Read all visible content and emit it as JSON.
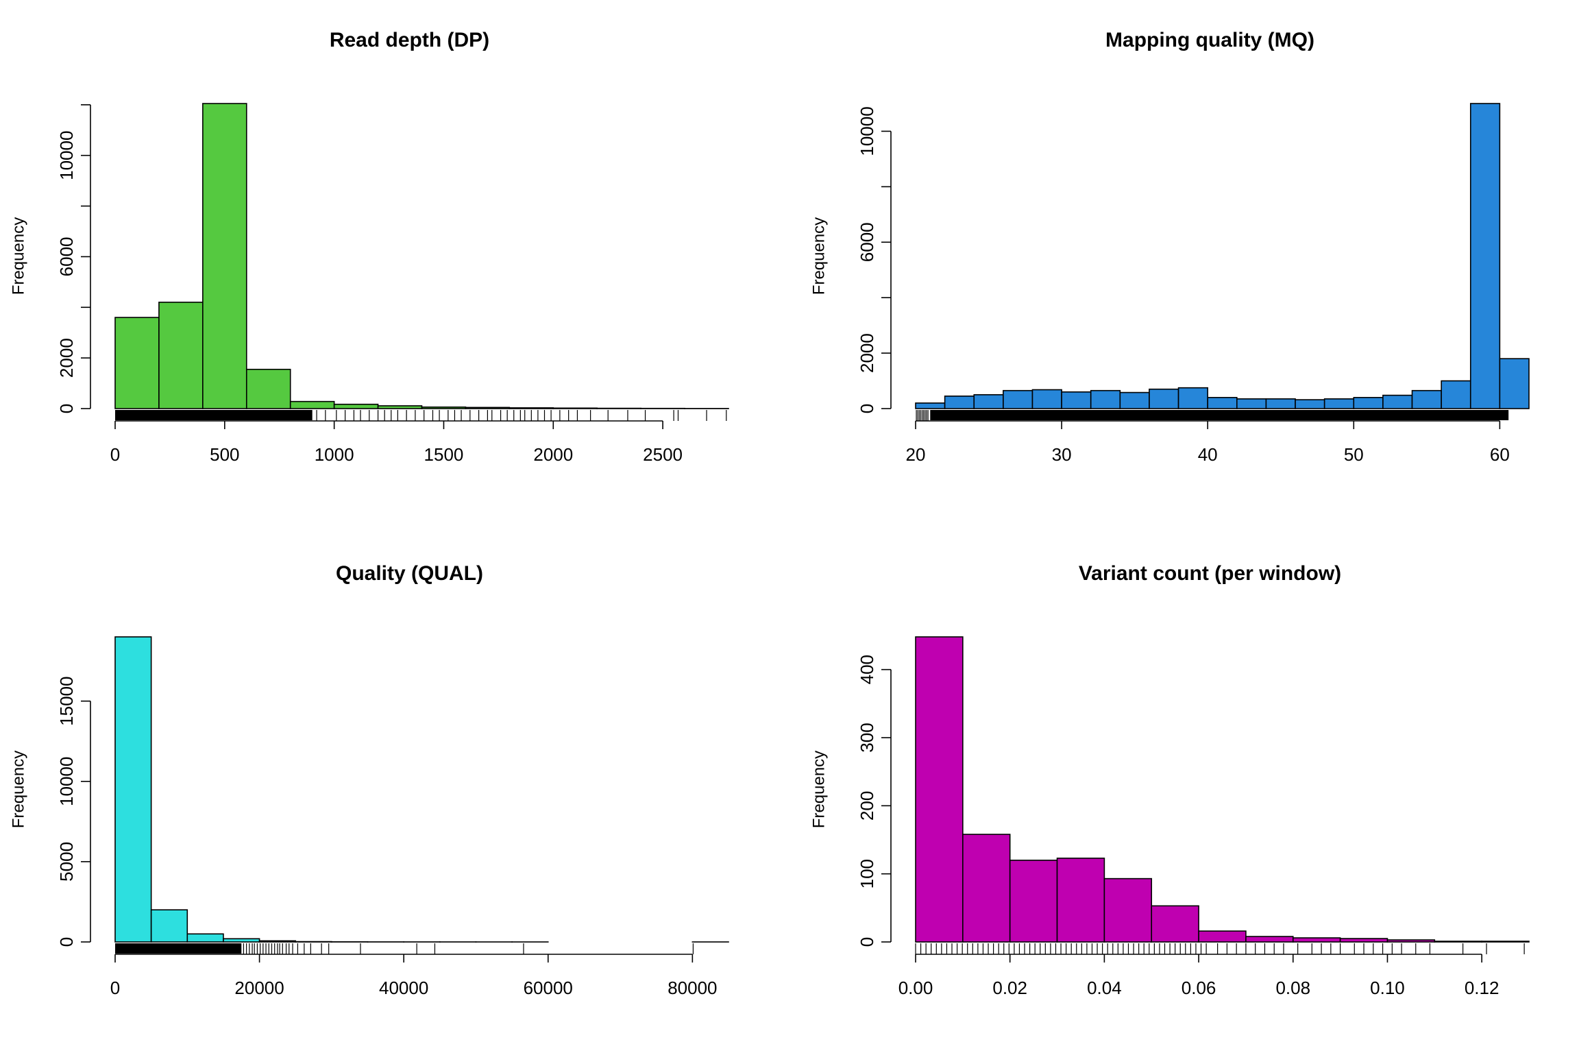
{
  "chart_data": [
    {
      "type": "bar",
      "title": "Read depth (DP)",
      "xlabel": "",
      "ylabel": "Frequency",
      "color": "#55c940",
      "bin_edges": [
        0,
        200,
        400,
        600,
        800,
        1000,
        1200,
        1400,
        1600,
        1800,
        2000,
        2200,
        2400,
        2600,
        2800
      ],
      "values": [
        3600,
        4200,
        12050,
        1550,
        280,
        170,
        110,
        60,
        45,
        30,
        20,
        12,
        8,
        4
      ],
      "xlim": [
        0,
        2800
      ],
      "ylim": [
        0,
        12050
      ],
      "xticks": [
        0,
        500,
        1000,
        1500,
        2000,
        2500
      ],
      "xtick_labels": [
        "0",
        "500",
        "1000",
        "1500",
        "2000",
        "2500"
      ],
      "yticks": [
        0,
        2000,
        6000,
        10000
      ],
      "ytick_marks": [
        0,
        2000,
        4000,
        6000,
        8000,
        10000,
        12000
      ],
      "ytick_labels": [
        "0",
        "2000",
        "6000",
        "10000"
      ],
      "rug": {
        "dense_to": 900,
        "sparse": [
          920,
          960,
          1010,
          1050,
          1090,
          1120,
          1160,
          1200,
          1230,
          1260,
          1290,
          1330,
          1370,
          1410,
          1450,
          1480,
          1520,
          1550,
          1580,
          1620,
          1660,
          1700,
          1720,
          1760,
          1790,
          1820,
          1850,
          1870,
          1900,
          1930,
          1960,
          1990,
          2030,
          2070,
          2110,
          2170,
          2250,
          2340,
          2420,
          2550,
          2570,
          2700,
          2790
        ]
      }
    },
    {
      "type": "bar",
      "title": "Mapping quality (MQ)",
      "xlabel": "",
      "ylabel": "Frequency",
      "color": "#2686d9",
      "bin_edges": [
        20,
        22,
        24,
        26,
        28,
        30,
        32,
        34,
        36,
        38,
        40,
        42,
        44,
        46,
        48,
        50,
        52,
        54,
        56,
        58,
        60,
        62
      ],
      "values": [
        200,
        450,
        500,
        650,
        680,
        600,
        650,
        580,
        700,
        750,
        400,
        350,
        350,
        320,
        350,
        400,
        480,
        650,
        1000,
        11000,
        1800
      ],
      "xlim": [
        20,
        62
      ],
      "ylim": [
        0,
        11000
      ],
      "xticks": [
        20,
        30,
        40,
        50,
        60
      ],
      "xtick_labels": [
        "20",
        "30",
        "40",
        "50",
        "60"
      ],
      "yticks": [
        0,
        2000,
        6000,
        10000
      ],
      "ytick_marks": [
        0,
        2000,
        4000,
        6000,
        8000,
        10000
      ],
      "ytick_labels": [
        "0",
        "2000",
        "6000",
        "10000"
      ],
      "rug": {
        "dense_from": 21,
        "dense_to": 60.6,
        "sparse": [
          20.05,
          20.15,
          20.25,
          20.35,
          20.45,
          20.55,
          20.65,
          20.75,
          20.85
        ]
      }
    },
    {
      "type": "bar",
      "title": "Quality (QUAL)",
      "xlabel": "",
      "ylabel": "Frequency",
      "color": "#2ddfdf",
      "bin_edges": [
        0,
        5000,
        10000,
        15000,
        20000,
        25000,
        30000,
        35000,
        40000,
        45000,
        50000,
        55000,
        60000,
        65000,
        70000,
        75000,
        80000,
        85000
      ],
      "values": [
        19000,
        2000,
        500,
        200,
        70,
        20,
        8,
        4,
        3,
        2,
        1,
        1,
        0,
        0,
        0,
        0,
        1
      ],
      "xlim": [
        0,
        85000
      ],
      "ylim": [
        0,
        19000
      ],
      "xticks": [
        0,
        20000,
        40000,
        60000,
        80000
      ],
      "xtick_labels": [
        "0",
        "20000",
        "40000",
        "60000",
        "80000"
      ],
      "yticks": [
        0,
        5000,
        10000,
        15000
      ],
      "ytick_marks": [
        0,
        5000,
        10000,
        15000
      ],
      "ytick_labels": [
        "0",
        "5000",
        "10000",
        "15000"
      ],
      "rug": {
        "dense_to": 17500,
        "sparse": [
          17800,
          18200,
          18600,
          19000,
          19300,
          19700,
          20100,
          20500,
          20900,
          21300,
          21700,
          22100,
          22500,
          22800,
          23200,
          23700,
          24100,
          24600,
          25300,
          26200,
          27100,
          28600,
          29600,
          34000,
          41800,
          44300,
          56600,
          80100
        ]
      }
    },
    {
      "type": "bar",
      "title": "Variant count (per window)",
      "xlabel": "",
      "ylabel": "Frequency",
      "color": "#bf00b0",
      "bin_edges": [
        0,
        0.01,
        0.02,
        0.03,
        0.04,
        0.05,
        0.06,
        0.07,
        0.08,
        0.09,
        0.1,
        0.11,
        0.12,
        0.13
      ],
      "values": [
        448,
        158,
        120,
        123,
        93,
        53,
        16,
        8,
        6,
        5,
        3,
        1,
        1
      ],
      "xlim": [
        0,
        0.13
      ],
      "ylim": [
        0,
        448
      ],
      "xticks": [
        0,
        0.02,
        0.04,
        0.06,
        0.08,
        0.1,
        0.12
      ],
      "xtick_labels": [
        "0.00",
        "0.02",
        "0.04",
        "0.06",
        "0.08",
        "0.10",
        "0.12"
      ],
      "yticks": [
        0,
        100,
        200,
        300,
        400
      ],
      "ytick_marks": [
        0,
        100,
        200,
        300,
        400
      ],
      "ytick_labels": [
        "0",
        "100",
        "200",
        "300",
        "400"
      ],
      "rug": {
        "step_to": 0.0625,
        "step": 0.0011,
        "sparse": [
          0.064,
          0.066,
          0.068,
          0.07,
          0.072,
          0.074,
          0.076,
          0.078,
          0.081,
          0.084,
          0.086,
          0.088,
          0.09,
          0.093,
          0.095,
          0.097,
          0.099,
          0.101,
          0.103,
          0.106,
          0.109,
          0.116,
          0.121,
          0.129
        ]
      }
    }
  ]
}
